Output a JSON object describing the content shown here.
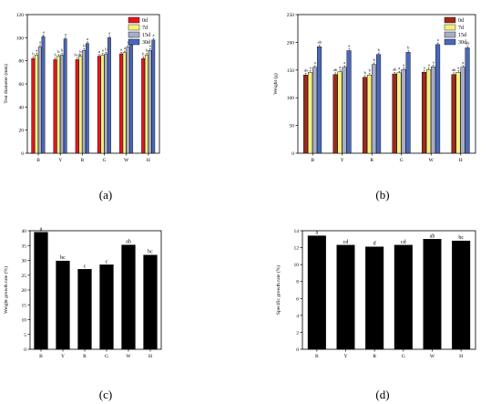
{
  "chart_data": [
    {
      "type": "bar",
      "panel": "(a)",
      "ylabel": "Test diameter (mm)",
      "ylim": [
        0,
        120
      ],
      "yticks": [
        0,
        20,
        40,
        60,
        80,
        100,
        120
      ],
      "categories": [
        "B",
        "Y",
        "R",
        "G",
        "W",
        "H"
      ],
      "legend_position": "top-right",
      "series": [
        {
          "name": "0d",
          "color": "#e8141e",
          "values": [
            82,
            81,
            81,
            84,
            86,
            82
          ],
          "labels": [
            "b",
            "b",
            "bcd",
            "a",
            "a",
            "b"
          ]
        },
        {
          "name": "7d",
          "color": "#f5f07e",
          "values": [
            85,
            84,
            84,
            85,
            87,
            85
          ],
          "labels": [
            "a",
            "b",
            "b",
            "a",
            "a",
            "b"
          ]
        },
        {
          "name": "15d",
          "color": "#a8aec8",
          "values": [
            92,
            85,
            89,
            86,
            92,
            89
          ],
          "labels": [
            "a",
            "b",
            "b",
            "b",
            "a",
            "a"
          ]
        },
        {
          "name": "30d",
          "color": "#4a68b8",
          "values": [
            101,
            99,
            95,
            100,
            97,
            98
          ],
          "labels": [
            "a",
            "a",
            "a",
            "a",
            "a",
            "a"
          ]
        }
      ]
    },
    {
      "type": "bar",
      "panel": "(b)",
      "ylabel": "Weight (g)",
      "ylim": [
        0,
        250
      ],
      "yticks": [
        0,
        50,
        100,
        150,
        200,
        250
      ],
      "categories": [
        "B",
        "Y",
        "R",
        "G",
        "W",
        "H"
      ],
      "legend_position": "top-right",
      "series": [
        {
          "name": "0d",
          "color": "#9c2a1a",
          "values": [
            141,
            142,
            137,
            143,
            146,
            142
          ],
          "labels": [
            "ab",
            "ab",
            "b",
            "ab",
            "a",
            "ab"
          ]
        },
        {
          "name": "7d",
          "color": "#f5f07e",
          "values": [
            146,
            147,
            141,
            145,
            151,
            146
          ],
          "labels": [
            "a",
            "a",
            "b",
            "a",
            "a",
            "a"
          ]
        },
        {
          "name": "15d",
          "color": "#a8aec8",
          "values": [
            155,
            155,
            160,
            151,
            156,
            155
          ],
          "labels": [
            "a",
            "a",
            "b",
            "a",
            "a",
            "a"
          ]
        },
        {
          "name": "30d",
          "color": "#4a68b8",
          "values": [
            192,
            185,
            178,
            182,
            196,
            190
          ],
          "labels": [
            "ab",
            "a",
            "b",
            "b",
            "a",
            "ab"
          ]
        }
      ]
    },
    {
      "type": "bar",
      "panel": "(c)",
      "ylabel": "Weight growth rate (%)",
      "ylim": [
        0,
        40
      ],
      "yticks": [
        0,
        5,
        10,
        15,
        20,
        25,
        30,
        35,
        40
      ],
      "categories": [
        "B",
        "Y",
        "R",
        "G",
        "W",
        "H"
      ],
      "series": [
        {
          "name": "",
          "color": "#000000",
          "values": [
            39.5,
            29.8,
            27.0,
            28.5,
            35.2,
            31.8
          ],
          "labels": [
            "a",
            "bc",
            "c",
            "c",
            "ab",
            "bc"
          ]
        }
      ]
    },
    {
      "type": "bar",
      "panel": "(d)",
      "ylabel": "Specific growth rate (%)",
      "ylim": [
        0,
        14
      ],
      "yticks": [
        0,
        2,
        4,
        6,
        8,
        10,
        12,
        14
      ],
      "categories": [
        "B",
        "Y",
        "R",
        "G",
        "W",
        "H"
      ],
      "series": [
        {
          "name": "",
          "color": "#000000",
          "values": [
            13.4,
            12.3,
            12.1,
            12.3,
            13.0,
            12.8
          ],
          "labels": [
            "a",
            "cd",
            "d",
            "cd",
            "ab",
            "bc"
          ]
        }
      ]
    }
  ]
}
